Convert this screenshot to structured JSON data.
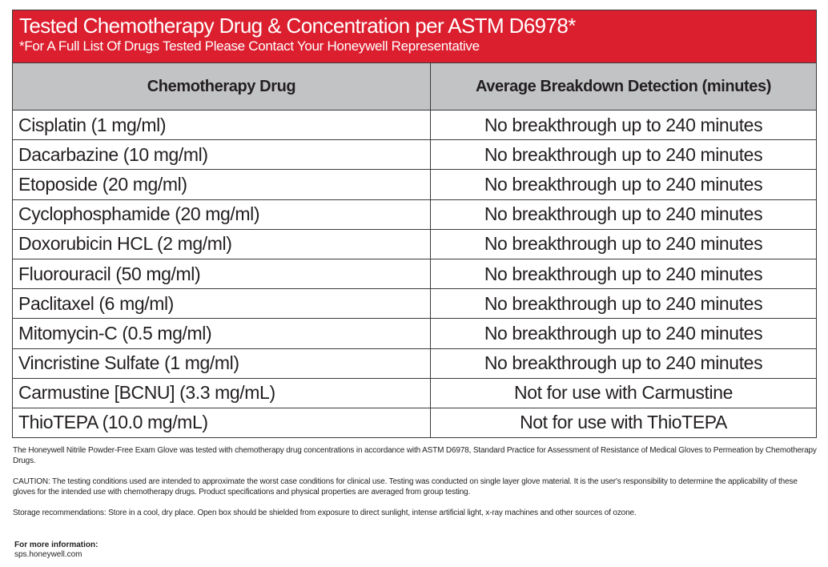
{
  "banner": {
    "title": "Tested Chemotherapy Drug & Concentration per ASTM D6978*",
    "subtitle": "*For A Full List Of Drugs Tested Please Contact Your Honeywell Representative",
    "color": "#dc1f2f"
  },
  "table": {
    "headers": [
      "Chemotherapy Drug",
      "Average Breakdown Detection (minutes)"
    ],
    "rows": [
      [
        "Cisplatin (1 mg/ml)",
        "No breakthrough up to 240 minutes"
      ],
      [
        "Dacarbazine (10 mg/ml)",
        "No breakthrough up to 240 minutes"
      ],
      [
        "Etoposide (20 mg/ml)",
        "No breakthrough up to 240 minutes"
      ],
      [
        "Cyclophosphamide (20 mg/ml)",
        "No breakthrough up to 240 minutes"
      ],
      [
        "Doxorubicin HCL (2 mg/ml)",
        "No breakthrough up to 240 minutes"
      ],
      [
        "Fluorouracil (50 mg/ml)",
        "No breakthrough up to 240 minutes"
      ],
      [
        "Paclitaxel (6 mg/ml)",
        "No breakthrough up to 240 minutes"
      ],
      [
        "Mitomycin-C (0.5 mg/ml)",
        "No breakthrough up to 240 minutes"
      ],
      [
        "Vincristine Sulfate (1 mg/ml)",
        "No breakthrough up to 240 minutes"
      ],
      [
        "Carmustine [BCNU] (3.3 mg/mL)",
        "Not for use with Carmustine"
      ],
      [
        "ThioTEPA (10.0 mg/mL)",
        "Not for use with ThioTEPA"
      ]
    ]
  },
  "notes": [
    "The Honeywell Nitrile Powder-Free Exam Glove was tested with chemotherapy drug concentrations in accordance with ASTM D6978, Standard Practice for Assessment of Resistance of Medical Gloves to Permeation by Chemotherapy Drugs.",
    "CAUTION: The testing conditions used are intended to approximate the worst case conditions for clinical use. Testing was conducted on single layer glove material. It is the user's responsibility to determine the applicability of these gloves for the intended use with chemotherapy drugs. Product specifications and physical properties are averaged from group testing.",
    "Storage recommendations: Store in a cool, dry place. Open box should be shielded from exposure to direct sunlight, intense artificial light, x-ray machines and other sources of ozone."
  ],
  "more_info": {
    "label": "For more information:",
    "url": "sps.honeywell.com"
  }
}
